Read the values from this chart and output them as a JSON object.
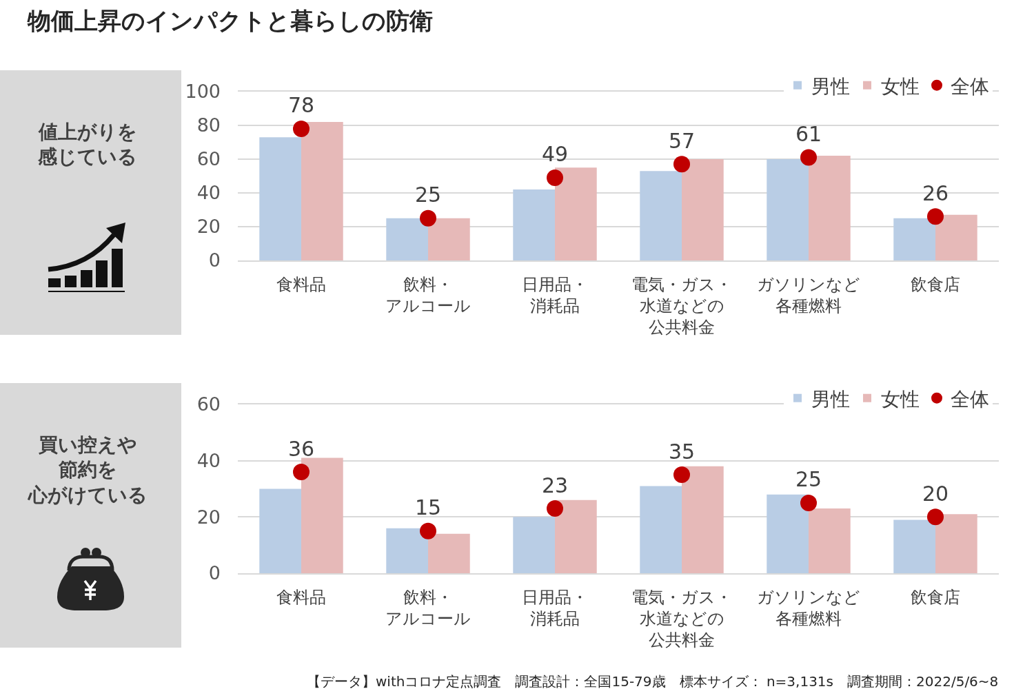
{
  "chart_data": [
    {
      "type": "bar",
      "title": "物価上昇のインパクトと暮らしの防衛",
      "annotations": [
        "値上がりを感じている"
      ],
      "categories": [
        "食料品",
        "飲料・アルコール",
        "日用品・消耗品",
        "電気・ガス・水道などの公共料金",
        "ガソリンなど各種燃料",
        "飲食店"
      ],
      "series": [
        {
          "name": "男性",
          "color": "#b9cde5",
          "values": [
            73,
            25,
            42,
            53,
            60,
            25
          ]
        },
        {
          "name": "女性",
          "color": "#e6b9b8",
          "values": [
            82,
            25,
            55,
            60,
            62,
            27
          ]
        },
        {
          "name": "全体",
          "type": "scatter",
          "color": "#c00000",
          "values": [
            78,
            25,
            49,
            57,
            61,
            26
          ],
          "value_labels": [
            "78",
            "25",
            "49",
            "57",
            "61",
            "26"
          ]
        }
      ],
      "ylim": [
        0,
        100
      ],
      "yticks": [
        0,
        20,
        40,
        60,
        80,
        100
      ],
      "grid": "y",
      "legend": "top right",
      "marker": "circle"
    },
    {
      "type": "bar",
      "annotations": [
        "買い控えや節約を心がけている",
        "【データ】withコロナ定点調査　調査設計：全国15-79歳　標本サイズ： n=3,131s　調査期間：2022/5/6~8"
      ],
      "categories": [
        "食料品",
        "飲料・アルコール",
        "日用品・消耗品",
        "電気・ガス・水道などの公共料金",
        "ガソリンなど各種燃料",
        "飲食店"
      ],
      "series": [
        {
          "name": "男性",
          "color": "#b9cde5",
          "values": [
            30,
            16,
            20,
            31,
            28,
            19
          ]
        },
        {
          "name": "女性",
          "color": "#e6b9b8",
          "values": [
            41,
            14,
            26,
            38,
            23,
            21
          ]
        },
        {
          "name": "全体",
          "type": "scatter",
          "color": "#c00000",
          "values": [
            36,
            15,
            23,
            35,
            25,
            20
          ],
          "value_labels": [
            "36",
            "15",
            "23",
            "35",
            "25",
            "20"
          ]
        }
      ],
      "ylim": [
        0,
        60
      ],
      "yticks": [
        0,
        20,
        40,
        60
      ],
      "grid": "y",
      "legend": "top right",
      "marker": "circle"
    }
  ]
}
